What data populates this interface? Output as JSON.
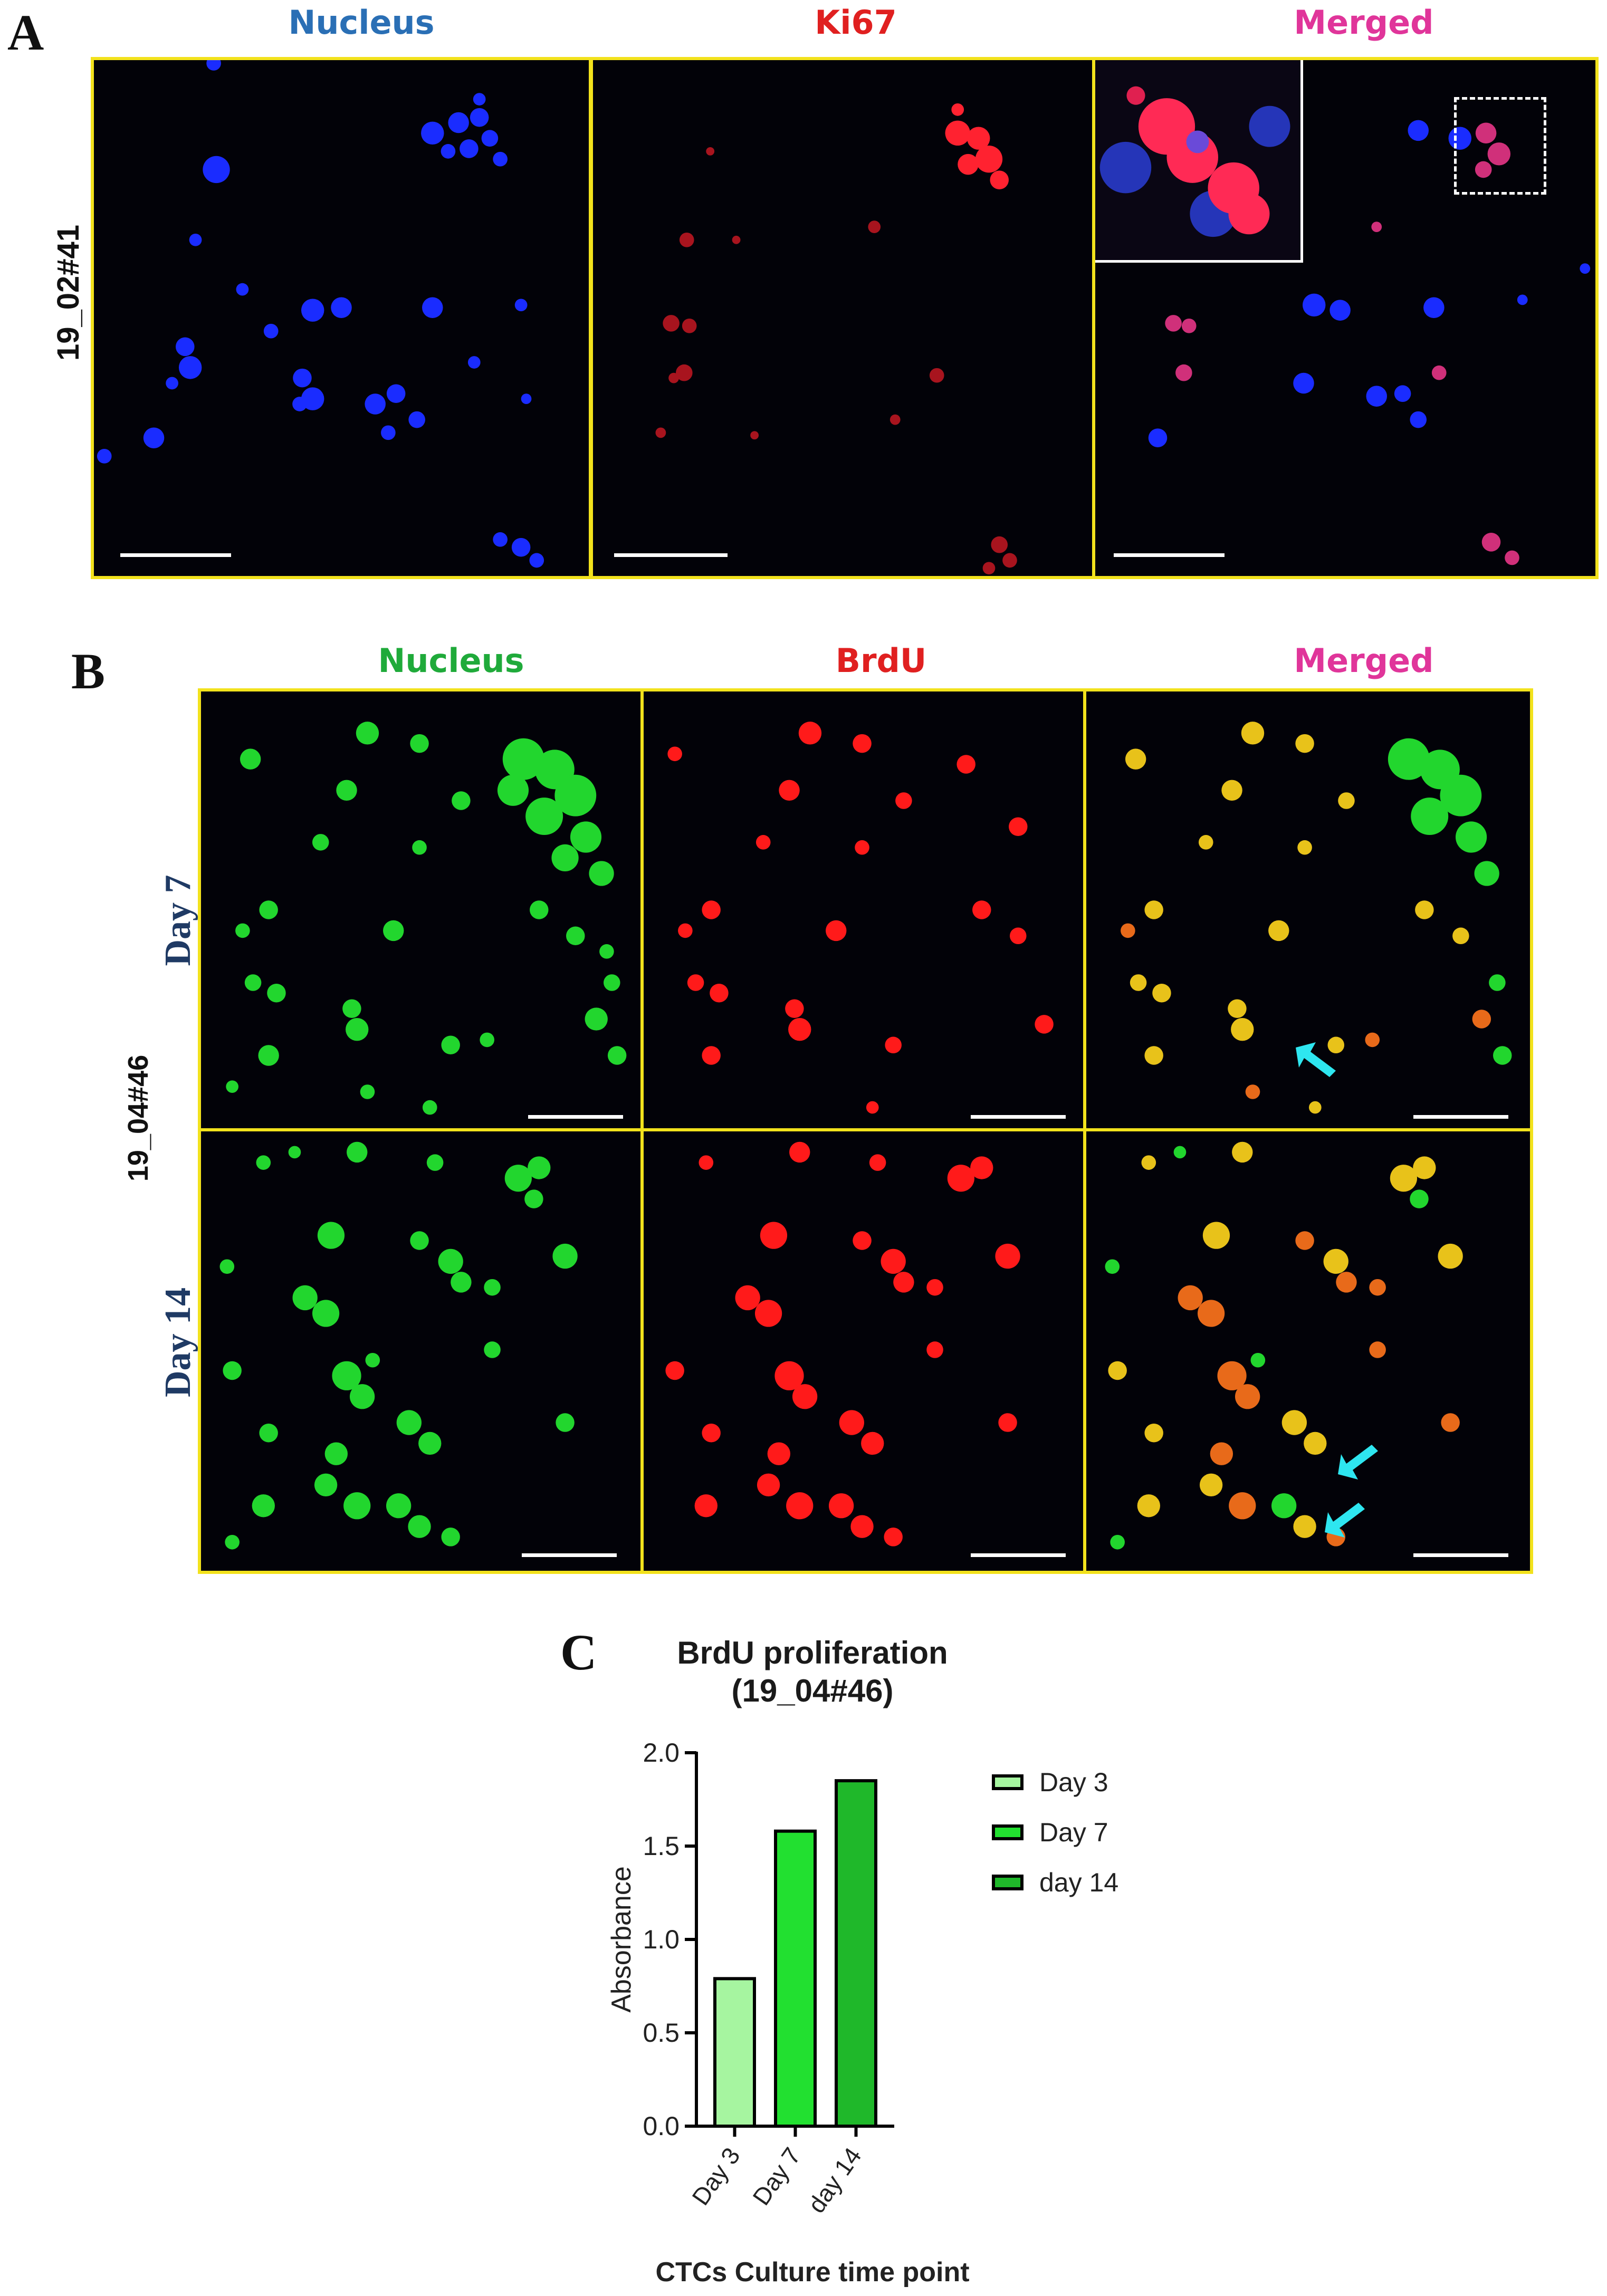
{
  "panelA": {
    "letter": "A",
    "sample_label": "19_02#41",
    "columns": [
      {
        "label": "Nucleus",
        "color": "#2a6fb5"
      },
      {
        "label": "Ki67",
        "color": "#e02020"
      },
      {
        "label": "Merged",
        "color": "#e0359a"
      }
    ]
  },
  "panelB": {
    "letter": "B",
    "sample_label": "19_04#46",
    "columns": [
      {
        "label": "Nucleus",
        "color": "#1faa3a"
      },
      {
        "label": "BrdU",
        "color": "#e02020"
      },
      {
        "label": "Merged",
        "color": "#e0359a"
      }
    ],
    "rows": [
      {
        "label": "Day 7",
        "color": "#1f3a64"
      },
      {
        "label": "Day 14",
        "color": "#1f3a64"
      }
    ],
    "arrow_color": "#2ee6f0"
  },
  "panelC": {
    "letter": "C",
    "chart_data": {
      "type": "bar",
      "title": "BrdU proliferation",
      "subtitle": "(19_04#46)",
      "xlabel": "CTCs Culture time point",
      "ylabel": "Absorbance",
      "categories": [
        "Day 3",
        "Day 7",
        "day 14"
      ],
      "values": [
        0.79,
        1.58,
        1.85
      ],
      "colors": [
        "#a6f5a0",
        "#22e030",
        "#1fb82a"
      ],
      "ylim": [
        0,
        2.0
      ],
      "yticks": [
        "0.0",
        "0.5",
        "1.0",
        "1.5",
        "2.0"
      ],
      "legend": {
        "position": "right",
        "entries": [
          "Day 3",
          "Day 7",
          "day 14"
        ]
      }
    }
  }
}
